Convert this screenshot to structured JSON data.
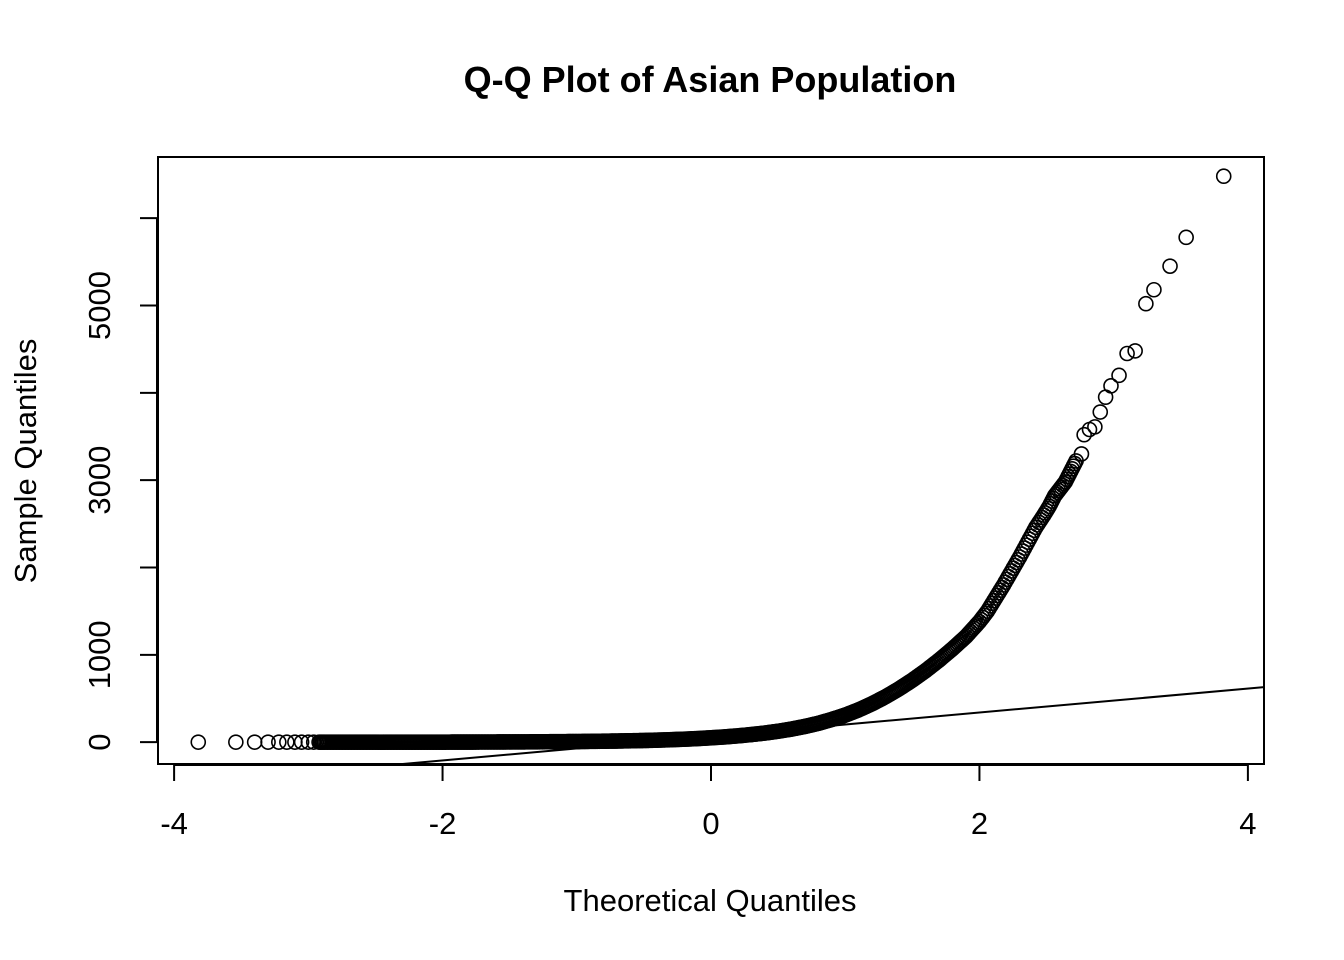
{
  "chart_data": {
    "type": "scatter",
    "title": "Q-Q Plot of Asian Population",
    "xlabel": "Theoretical Quantiles",
    "ylabel": "Sample Quantiles",
    "xlim": [
      -4.12,
      4.12
    ],
    "ylim": [
      -250,
      6700
    ],
    "x_ticks": [
      -4,
      -2,
      0,
      2,
      4
    ],
    "x_tick_labels": [
      "-4",
      "-2",
      "0",
      "2",
      "4"
    ],
    "y_ticks": [
      0,
      1000,
      2000,
      3000,
      4000,
      5000,
      6000
    ],
    "y_tick_labels": [
      "0",
      "1000",
      "",
      "3000",
      "",
      "5000",
      ""
    ],
    "grid": false,
    "legend": "none",
    "reference_line": {
      "x": [
        -4.12,
        4.12
      ],
      "y": [
        -500,
        630
      ]
    },
    "series": [
      {
        "marker": "open-circle",
        "points": [
          [
            -3.82,
            0
          ],
          [
            -3.54,
            0
          ],
          [
            -3.4,
            0
          ],
          [
            -3.3,
            0
          ],
          [
            -3.22,
            0
          ],
          [
            -3.16,
            0
          ],
          [
            -3.1,
            0
          ],
          [
            -3.05,
            0
          ],
          [
            -3.0,
            0
          ],
          [
            -2.96,
            0
          ],
          [
            -2.92,
            0
          ],
          [
            -2.88,
            0
          ],
          [
            -2.8,
            0
          ],
          [
            -2.7,
            0
          ],
          [
            -2.6,
            0
          ],
          [
            -2.5,
            0
          ],
          [
            -2.4,
            0
          ],
          [
            -2.3,
            0
          ],
          [
            -2.2,
            0
          ],
          [
            -2.1,
            0
          ],
          [
            -2.0,
            0
          ],
          [
            -1.9,
            1
          ],
          [
            -1.8,
            1
          ],
          [
            -1.7,
            2
          ],
          [
            -1.6,
            2
          ],
          [
            -1.5,
            3
          ],
          [
            -1.4,
            3
          ],
          [
            -1.3,
            4
          ],
          [
            -1.2,
            5
          ],
          [
            -1.1,
            6
          ],
          [
            -1.0,
            7
          ],
          [
            -0.9,
            9
          ],
          [
            -0.8,
            11
          ],
          [
            -0.7,
            13
          ],
          [
            -0.6,
            16
          ],
          [
            -0.5,
            19
          ],
          [
            -0.4,
            23
          ],
          [
            -0.3,
            28
          ],
          [
            -0.2,
            34
          ],
          [
            -0.1,
            41
          ],
          [
            0.0,
            50
          ],
          [
            0.1,
            60
          ],
          [
            0.2,
            72
          ],
          [
            0.3,
            87
          ],
          [
            0.4,
            104
          ],
          [
            0.5,
            125
          ],
          [
            0.6,
            150
          ],
          [
            0.7,
            180
          ],
          [
            0.8,
            216
          ],
          [
            0.9,
            260
          ],
          [
            1.0,
            310
          ],
          [
            1.1,
            370
          ],
          [
            1.2,
            440
          ],
          [
            1.3,
            520
          ],
          [
            1.4,
            610
          ],
          [
            1.5,
            710
          ],
          [
            1.6,
            820
          ],
          [
            1.7,
            940
          ],
          [
            1.8,
            1070
          ],
          [
            1.9,
            1210
          ],
          [
            2.0,
            1380
          ],
          [
            2.06,
            1500
          ],
          [
            2.12,
            1650
          ],
          [
            2.18,
            1800
          ],
          [
            2.24,
            1960
          ],
          [
            2.3,
            2120
          ],
          [
            2.36,
            2290
          ],
          [
            2.42,
            2460
          ],
          [
            2.48,
            2600
          ],
          [
            2.52,
            2700
          ],
          [
            2.56,
            2820
          ],
          [
            2.6,
            2900
          ],
          [
            2.64,
            2980
          ],
          [
            2.68,
            3100
          ],
          [
            2.72,
            3220
          ],
          [
            2.76,
            3300
          ],
          [
            2.78,
            3520
          ],
          [
            2.82,
            3580
          ],
          [
            2.86,
            3610
          ],
          [
            2.9,
            3780
          ],
          [
            2.94,
            3950
          ],
          [
            2.98,
            4080
          ],
          [
            3.04,
            4200
          ],
          [
            3.1,
            4450
          ],
          [
            3.16,
            4480
          ],
          [
            3.24,
            5020
          ],
          [
            3.3,
            5180
          ],
          [
            3.42,
            5450
          ],
          [
            3.54,
            5780
          ],
          [
            3.82,
            6480
          ]
        ]
      }
    ]
  }
}
